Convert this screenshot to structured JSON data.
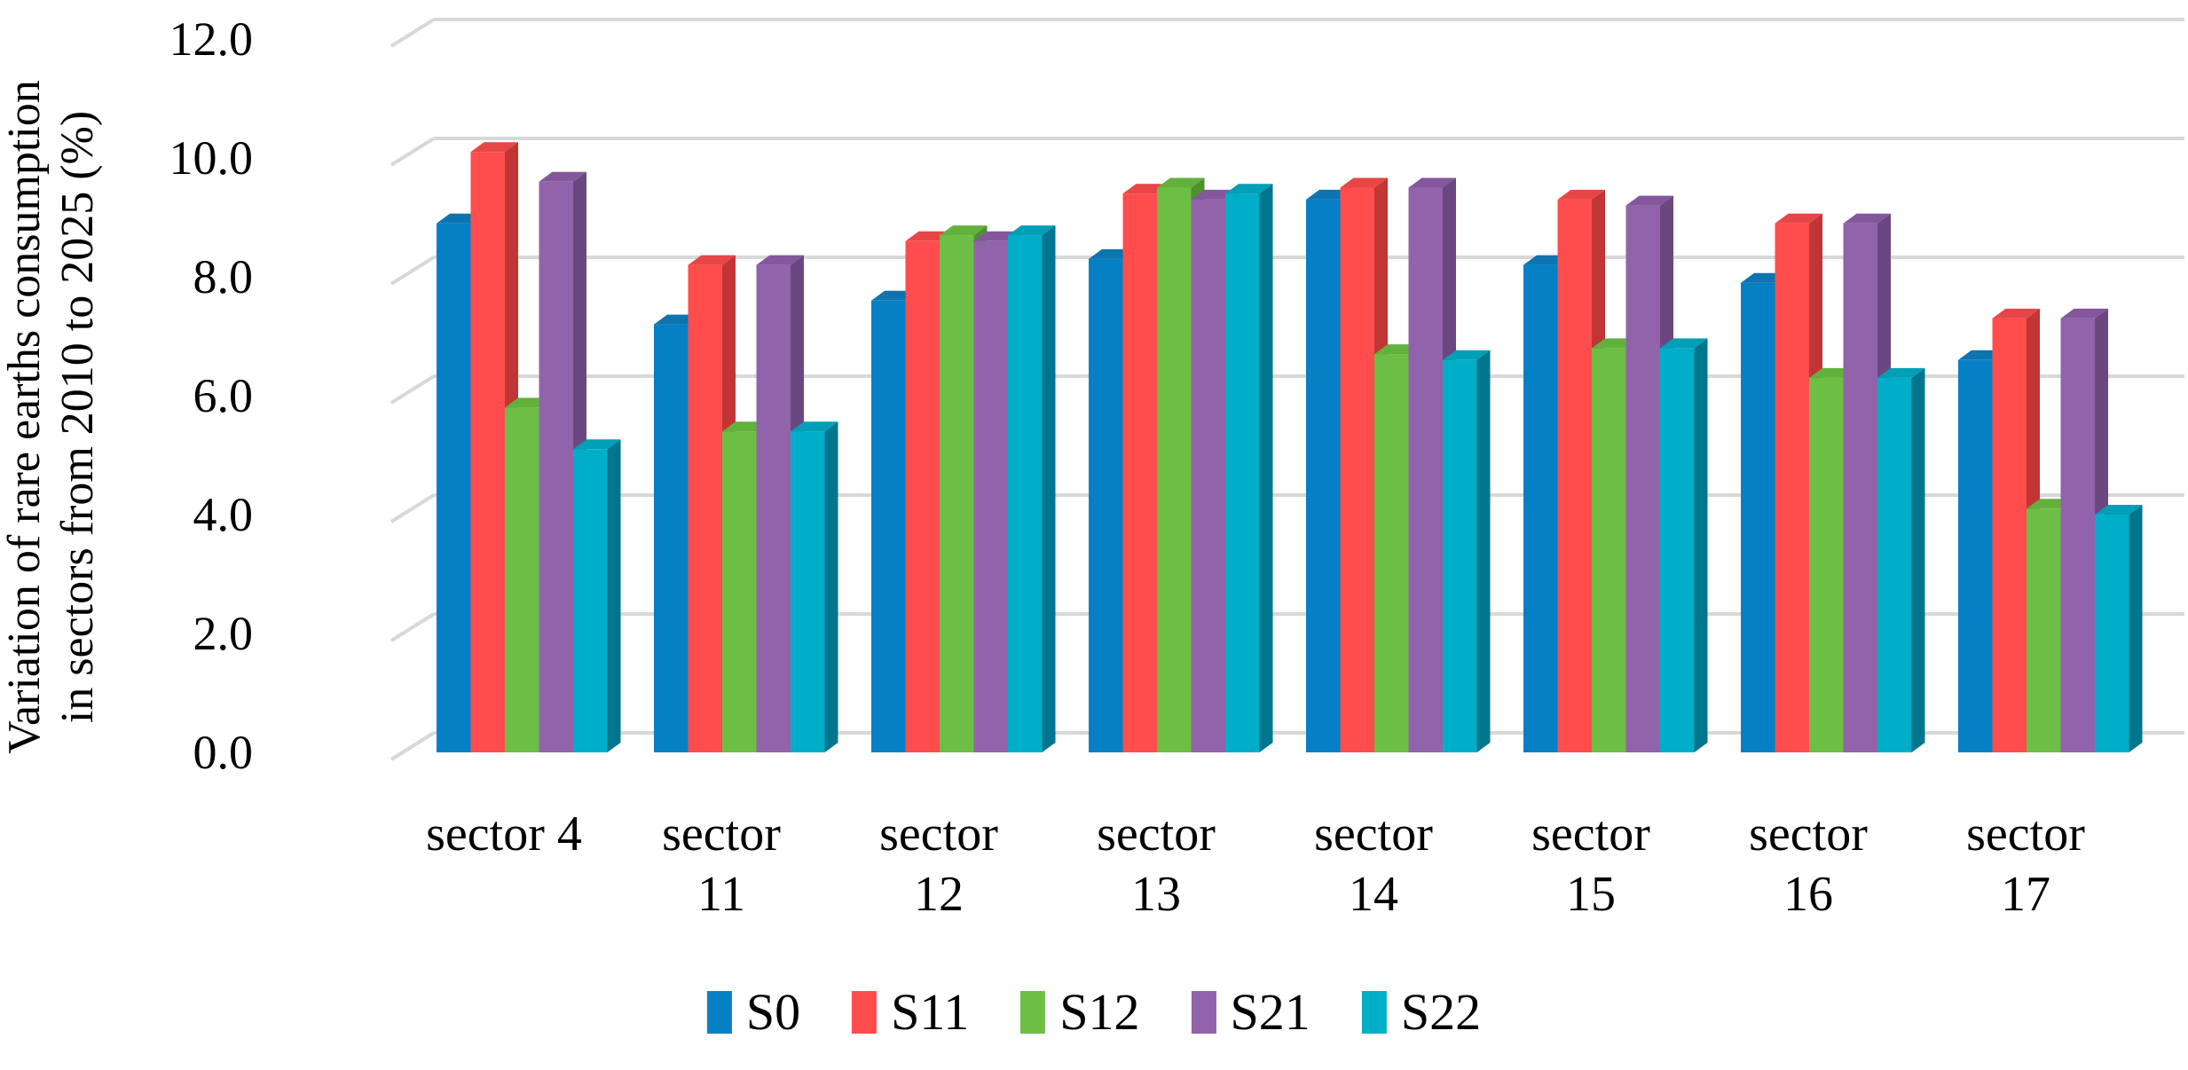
{
  "chart_data": {
    "type": "bar",
    "style": "3d-clustered-column",
    "title": "",
    "ylabel_lines": [
      "Variation of rare earths consumption",
      "in sectors from 2010 to 2025 (%)"
    ],
    "xlabel": "",
    "categories": [
      "sector 4",
      "sector 11",
      "sector 12",
      "sector 13",
      "sector 14",
      "sector 15",
      "sector 16",
      "sector 17"
    ],
    "category_label_lines": [
      [
        "sector 4"
      ],
      [
        "sector",
        "11"
      ],
      [
        "sector",
        "12"
      ],
      [
        "sector",
        "13"
      ],
      [
        "sector",
        "14"
      ],
      [
        "sector",
        "15"
      ],
      [
        "sector",
        "16"
      ],
      [
        "sector",
        "17"
      ]
    ],
    "series": [
      {
        "name": "S0",
        "color": "#0580C4",
        "side_color": "#045E92",
        "top_color": "#0C74AF",
        "values": [
          8.9,
          7.2,
          7.6,
          8.3,
          9.3,
          8.2,
          7.9,
          6.6
        ]
      },
      {
        "name": "S11",
        "color": "#FF4D4D",
        "side_color": "#C23535",
        "top_color": "#E84646",
        "values": [
          10.1,
          8.2,
          8.6,
          9.4,
          9.5,
          9.3,
          8.9,
          7.3
        ]
      },
      {
        "name": "S12",
        "color": "#6DBE45",
        "side_color": "#4F9030",
        "top_color": "#62B13C",
        "values": [
          5.8,
          5.4,
          8.7,
          9.5,
          6.7,
          6.8,
          6.3,
          4.1
        ]
      },
      {
        "name": "S21",
        "color": "#9163AB",
        "side_color": "#6B477F",
        "top_color": "#84579D",
        "values": [
          9.6,
          8.2,
          8.6,
          9.3,
          9.5,
          9.2,
          8.9,
          7.3
        ]
      },
      {
        "name": "S22",
        "color": "#00AEC8",
        "side_color": "#00768E",
        "top_color": "#009FB7",
        "values": [
          5.1,
          5.4,
          8.7,
          9.4,
          6.6,
          6.8,
          6.3,
          4.0
        ]
      }
    ],
    "y_ticks": [
      "12.0",
      "10.0",
      "8.0",
      "6.0",
      "4.0",
      "2.0",
      "0.0"
    ],
    "ylim": [
      0,
      12
    ],
    "y_tick_step": 2.0,
    "grid": true,
    "gridline_color": "#D8D8D8",
    "text_color": "#000000",
    "legend_position": "bottom",
    "legend_labels": [
      "S0",
      "S11",
      "S12",
      "S21",
      "S22"
    ]
  }
}
